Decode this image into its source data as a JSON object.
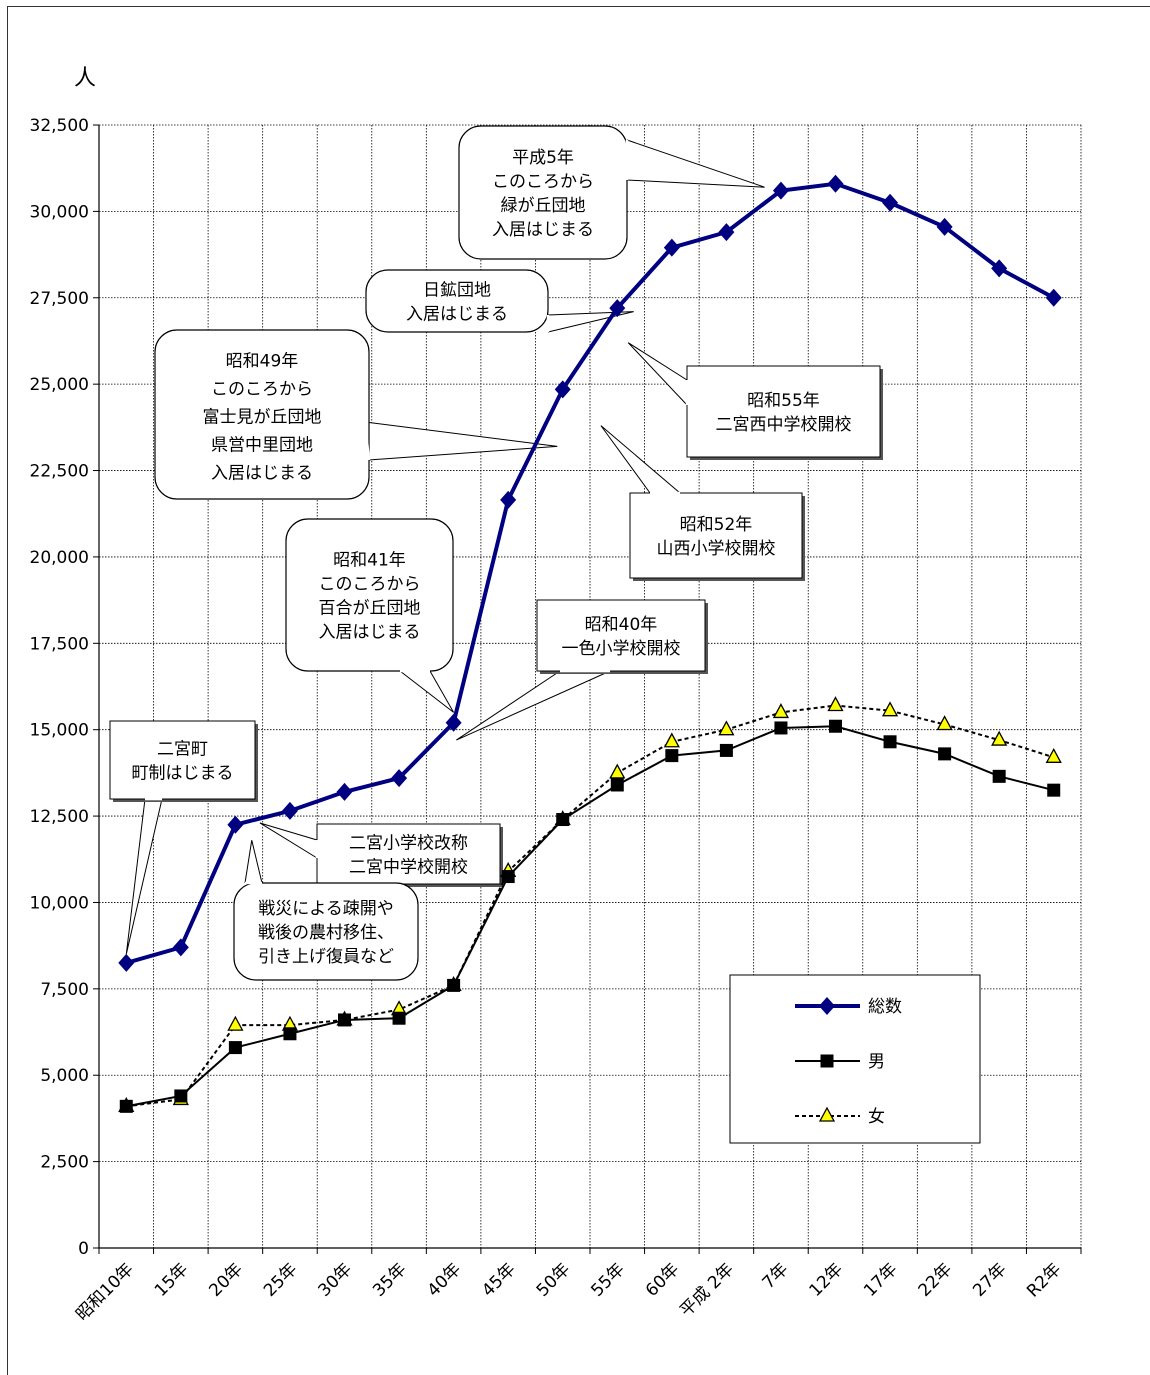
{
  "chart_data": {
    "type": "line",
    "ylabel": "人",
    "ylim": [
      0,
      32500
    ],
    "yticks": [
      "0",
      "2,500",
      "5,000",
      "7,500",
      "10,000",
      "12,500",
      "15,000",
      "17,500",
      "20,000",
      "22,500",
      "25,000",
      "27,500",
      "30,000",
      "32,500"
    ],
    "categories": [
      "昭和10年",
      "15年",
      "20年",
      "25年",
      "30年",
      "35年",
      "40年",
      "45年",
      "50年",
      "55年",
      "60年",
      "平成 2年",
      "7年",
      "12年",
      "17年",
      "22年",
      "27年",
      "R2年"
    ],
    "grid": true,
    "legend_position": "bottom-right",
    "series": [
      {
        "name": "総数",
        "color": "#000080",
        "marker": "diamond",
        "dash": false,
        "values": [
          8250,
          8700,
          12250,
          12650,
          13200,
          13600,
          15200,
          21650,
          24850,
          27200,
          28950,
          29400,
          30600,
          30800,
          30250,
          29550,
          28350,
          27500
        ]
      },
      {
        "name": "男",
        "color": "#000000",
        "marker": "square",
        "dash": false,
        "values": [
          4100,
          4400,
          5800,
          6200,
          6600,
          6650,
          7600,
          10750,
          12400,
          13400,
          14250,
          14400,
          15050,
          15100,
          14650,
          14300,
          13650,
          13250
        ]
      },
      {
        "name": "女",
        "color": "#000000",
        "marker": "triangle",
        "marker_fill": "#ffff00",
        "dash": true,
        "values": [
          4100,
          4300,
          6450,
          6450,
          6600,
          6900,
          7600,
          10900,
          12400,
          13750,
          14650,
          15000,
          15500,
          15700,
          15550,
          15150,
          14700,
          14200
        ]
      }
    ],
    "annotations": [
      {
        "lines": [
          "二宮町",
          "町制はじまる"
        ],
        "point": [
          0,
          8500
        ],
        "shape": "rect"
      },
      {
        "lines": [
          "二宮小学校改称",
          "二宮中学校開校"
        ],
        "point": [
          2.45,
          12300
        ],
        "shape": "rect"
      },
      {
        "lines": [
          "戦災による疎開や",
          "戦後の農村移住、",
          "引き上げ復員など"
        ],
        "point": [
          2.3,
          11800
        ],
        "shape": "round"
      },
      {
        "lines": [
          "昭和41年",
          "このころから",
          "百合が丘団地",
          "入居はじまる"
        ],
        "point": [
          6,
          15500
        ],
        "shape": "round"
      },
      {
        "lines": [
          "昭和40年",
          "一色小学校開校"
        ],
        "point": [
          6.05,
          14700
        ],
        "shape": "rect"
      },
      {
        "lines": [
          "昭和49年",
          "このころから",
          "富士見が丘団地",
          "県営中里団地",
          "入居はじまる"
        ],
        "point": [
          7.9,
          23200
        ],
        "shape": "round"
      },
      {
        "lines": [
          "昭和52年",
          "山西小学校開校"
        ],
        "point": [
          8.7,
          23800
        ],
        "shape": "rect"
      },
      {
        "lines": [
          "昭和55年",
          "二宮西中学校開校"
        ],
        "point": [
          9.2,
          26200
        ],
        "shape": "rect"
      },
      {
        "lines": [
          "日鉱団地",
          "入居はじまる"
        ],
        "point": [
          9.3,
          27100
        ],
        "shape": "round"
      },
      {
        "lines": [
          "平成5年",
          "このころから",
          "緑が丘団地",
          "入居はじまる"
        ],
        "point": [
          11.7,
          30700
        ],
        "shape": "round"
      }
    ]
  }
}
